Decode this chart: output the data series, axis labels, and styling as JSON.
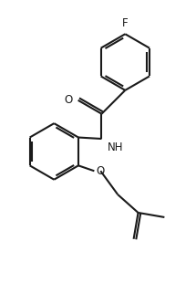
{
  "background": "#ffffff",
  "line_color": "#1a1a1a",
  "line_width": 1.5,
  "font_size": 8.5,
  "fig_width": 2.15,
  "fig_height": 3.1,
  "dpi": 100,
  "xlim": [
    0.0,
    4.3
  ],
  "ylim": [
    0.0,
    6.2
  ]
}
